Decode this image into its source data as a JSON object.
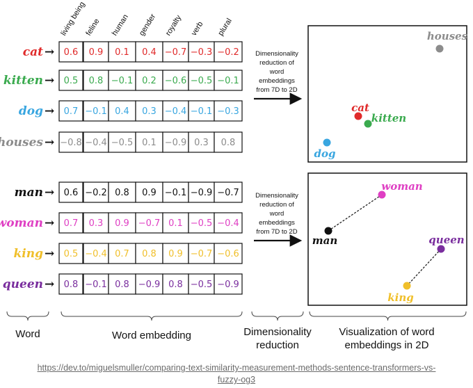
{
  "colors": {
    "red": "#e02a2a",
    "green": "#3aaa4e",
    "blue": "#39a6e0",
    "gray": "#8c8c8c",
    "black": "#111111",
    "magenta": "#df3fc3",
    "yellow": "#f0bf2a",
    "purple": "#7a2e9e"
  },
  "headers": [
    "living being",
    "feline",
    "human",
    "gender",
    "royalty",
    "verb",
    "plural"
  ],
  "arrow_glyph": "→",
  "groups": [
    {
      "rows": [
        {
          "word": "cat",
          "color": "red",
          "values": [
            "0.6",
            "0.9",
            "0.1",
            "0.4",
            "−0.7",
            "−0.3",
            "−0.2"
          ]
        },
        {
          "word": "kitten",
          "color": "green",
          "values": [
            "0.5",
            "0.8",
            "−0.1",
            "0.2",
            "−0.6",
            "−0.5",
            "−0.1"
          ]
        },
        {
          "word": "dog",
          "color": "blue",
          "values": [
            "0.7",
            "−0.1",
            "0.4",
            "0.3",
            "−0.4",
            "−0.1",
            "−0.3"
          ]
        },
        {
          "word": "houses",
          "color": "gray",
          "values": [
            "−0.8",
            "−0.4",
            "−0.5",
            "0.1",
            "−0.9",
            "0.3",
            "0.8"
          ]
        }
      ],
      "reduction_note": [
        "Dimensionality",
        "reduction of",
        "word",
        "embeddings",
        "from 7D to 2D"
      ],
      "points": [
        {
          "label": "houses",
          "color": "gray"
        },
        {
          "label": "cat",
          "color": "red"
        },
        {
          "label": "kitten",
          "color": "green"
        },
        {
          "label": "dog",
          "color": "blue"
        }
      ]
    },
    {
      "rows": [
        {
          "word": "man",
          "color": "black",
          "values": [
            "0.6",
            "−0.2",
            "0.8",
            "0.9",
            "−0.1",
            "−0.9",
            "−0.7"
          ]
        },
        {
          "word": "woman",
          "color": "magenta",
          "values": [
            "0.7",
            "0.3",
            "0.9",
            "−0.7",
            "0.1",
            "−0.5",
            "−0.4"
          ]
        },
        {
          "word": "king",
          "color": "yellow",
          "values": [
            "0.5",
            "−0.4",
            "0.7",
            "0.8",
            "0.9",
            "−0.7",
            "−0.6"
          ]
        },
        {
          "word": "queen",
          "color": "purple",
          "values": [
            "0.8",
            "−0.1",
            "0.8",
            "−0.9",
            "0.8",
            "−0.5",
            "−0.9"
          ]
        }
      ],
      "reduction_note": [
        "Dimensionality",
        "reduction of",
        "word",
        "embeddings",
        "from 7D to 2D"
      ],
      "points": [
        {
          "label": "woman",
          "color": "magenta"
        },
        {
          "label": "man",
          "color": "black"
        },
        {
          "label": "queen",
          "color": "purple"
        },
        {
          "label": "king",
          "color": "yellow"
        }
      ]
    }
  ],
  "bottom_labels": {
    "word": "Word",
    "embedding": "Word embedding",
    "reduction": [
      "Dimensionality",
      "reduction"
    ],
    "visualization": [
      "Visualization of word",
      "embeddings  in 2D"
    ]
  },
  "source_url": [
    "https://dev.to/miguelsmuller/comparing-text-similarity-measurement-methods-sentence-transformers-vs-",
    "fuzzy-og3"
  ]
}
